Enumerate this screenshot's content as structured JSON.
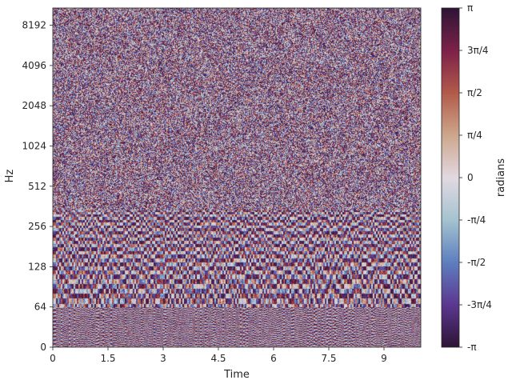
{
  "chart_data": {
    "type": "heatmap",
    "title": "",
    "xlabel": "Time",
    "ylabel": "Hz",
    "x_ticks": [
      "0",
      "1.5",
      "3",
      "4.5",
      "6",
      "7.5",
      "9"
    ],
    "x_tick_values": [
      0,
      1.5,
      3,
      4.5,
      6,
      7.5,
      9
    ],
    "xlim": [
      0,
      10.0
    ],
    "y_scale": "log2 (symlog)",
    "y_ticks": [
      "0",
      "64",
      "128",
      "256",
      "512",
      "1024",
      "2048",
      "4096",
      "8192"
    ],
    "y_tick_values": [
      0,
      64,
      128,
      256,
      512,
      1024,
      2048,
      4096,
      8192
    ],
    "ylim": [
      0,
      11025
    ],
    "colorbar": {
      "label": "radians",
      "colormap": "twilight_shifted",
      "range": [
        -3.14159,
        3.14159
      ],
      "ticks": [
        "-π",
        "-3π/4",
        "-π/2",
        "-π/4",
        "0",
        "π/4",
        "π/2",
        "3π/4",
        "π"
      ],
      "tick_values": [
        -3.14159,
        -2.35619,
        -1.5708,
        -0.7854,
        0,
        0.7854,
        1.5708,
        2.35619,
        3.14159
      ]
    },
    "colors": {
      "negative_pi": "#2f1436",
      "negative_3pi4": "#5b3890",
      "negative_pi2": "#5e7fbf",
      "negative_pi4": "#a5c3d0",
      "zero": "#e2d9e2",
      "positive_pi4": "#cda78c",
      "positive_pi2": "#b35b4a",
      "positive_3pi4": "#7d2149",
      "positive_pi": "#2f1436"
    }
  }
}
